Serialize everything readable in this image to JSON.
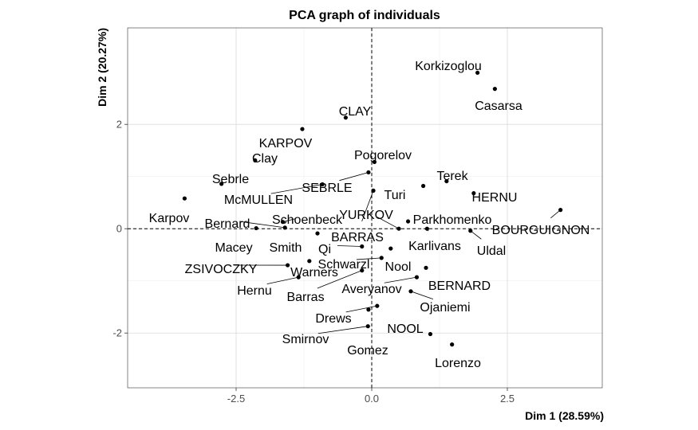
{
  "chart_data": {
    "type": "scatter",
    "title": "PCA graph of individuals",
    "xlabel": "Dim 1 (28.59%)",
    "ylabel": "Dim 2 (20.27%)",
    "xlim": [
      -4.5,
      4.25
    ],
    "ylim": [
      -3.05,
      3.85
    ],
    "xticks": [
      -2.5,
      0.0,
      2.5
    ],
    "yticks": [
      -2,
      0,
      2
    ],
    "tick_labels_x": [
      "-2.5",
      "0.0",
      "2.5"
    ],
    "tick_labels_y": [
      "-2",
      "0",
      "2"
    ],
    "grid": true,
    "reference_lines": {
      "x": 0,
      "y": 0,
      "style": "dashed"
    },
    "points": [
      {
        "label": "Korkizoglou",
        "x": 1.95,
        "y": 2.99
      },
      {
        "label": "Casarsa",
        "x": 2.27,
        "y": 2.68
      },
      {
        "label": "CLAY",
        "x": -0.48,
        "y": 2.13
      },
      {
        "label": "KARPOV",
        "x": -1.28,
        "y": 1.91
      },
      {
        "label": "Clay",
        "x": -2.15,
        "y": 1.31
      },
      {
        "label": "Pogorelov",
        "x": 0.05,
        "y": 1.28
      },
      {
        "label": "Sebrle",
        "x": -2.77,
        "y": 0.86
      },
      {
        "label": "SEBRLE",
        "x": -0.06,
        "y": 1.08
      },
      {
        "label": "Terek",
        "x": 1.38,
        "y": 0.91
      },
      {
        "label": "Turi",
        "x": 0.95,
        "y": 0.82
      },
      {
        "label": "HERNU",
        "x": 1.88,
        "y": 0.68
      },
      {
        "label": "McMULLEN",
        "x": -0.91,
        "y": 0.85
      },
      {
        "label": "Karpov",
        "x": -3.45,
        "y": 0.58
      },
      {
        "label": "Parkhomenko",
        "x": 0.67,
        "y": 0.14
      },
      {
        "label": "BOURGUIGNON",
        "x": 3.48,
        "y": 0.36
      },
      {
        "label": "YURKOV",
        "x": 0.5,
        "y": 0.0
      },
      {
        "label": "Schoenbeck",
        "x": -1.64,
        "y": 0.13
      },
      {
        "label": "Bernard",
        "x": -1.6,
        "y": 0.02
      },
      {
        "label": "Karlivans",
        "x": 1.02,
        "y": 0.0
      },
      {
        "label": "Uldal",
        "x": 1.82,
        "y": -0.04
      },
      {
        "label": "BARRAS",
        "x": 0.03,
        "y": 0.73
      },
      {
        "label": "Macey",
        "x": -2.13,
        "y": 0.01
      },
      {
        "label": "Smith",
        "x": -1.0,
        "y": -0.09
      },
      {
        "label": "Qi",
        "x": -0.18,
        "y": -0.34
      },
      {
        "label": "Nool",
        "x": 0.35,
        "y": -0.38
      },
      {
        "label": "Schwarzl",
        "x": 0.18,
        "y": -0.56
      },
      {
        "label": "ZSIVOCZKY",
        "x": -1.55,
        "y": -0.7
      },
      {
        "label": "Warners",
        "x": -1.15,
        "y": -0.62
      },
      {
        "label": "BERNARD",
        "x": 1.0,
        "y": -0.75
      },
      {
        "label": "Hernu",
        "x": -1.35,
        "y": -0.93
      },
      {
        "label": "Averyanov",
        "x": 0.83,
        "y": -0.93
      },
      {
        "label": "Barras",
        "x": -0.18,
        "y": -0.8
      },
      {
        "label": "Ojaniemi",
        "x": 0.72,
        "y": -1.2
      },
      {
        "label": "Drews",
        "x": 0.1,
        "y": -1.48
      },
      {
        "label": "NOOL",
        "x": 1.08,
        "y": -2.02
      },
      {
        "label": "Smirnov",
        "x": -0.07,
        "y": -1.87
      },
      {
        "label": "Gomez",
        "x": -0.06,
        "y": -1.55
      },
      {
        "label": "Lorenzo",
        "x": 1.48,
        "y": -2.22
      }
    ]
  }
}
